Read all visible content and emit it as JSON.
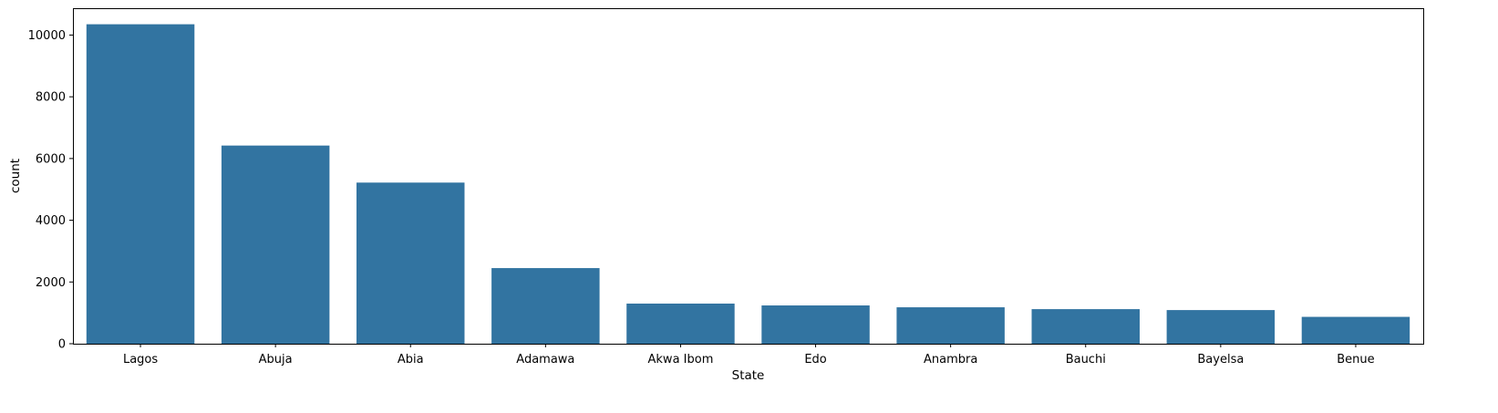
{
  "chart_data": {
    "type": "bar",
    "categories": [
      "Lagos",
      "Abuja",
      "Abia",
      "Adamawa",
      "Akwa Ibom",
      "Edo",
      "Anambra",
      "Bauchi",
      "Bayelsa",
      "Benue"
    ],
    "values": [
      10350,
      6420,
      5220,
      2450,
      1300,
      1240,
      1180,
      1120,
      1090,
      870
    ],
    "xlabel": "State",
    "ylabel": "count",
    "ylim": [
      0,
      10870
    ],
    "yticks": [
      0,
      2000,
      4000,
      6000,
      8000,
      10000
    ],
    "grid": false,
    "legend": "none",
    "bar_color": "#3274a1"
  }
}
